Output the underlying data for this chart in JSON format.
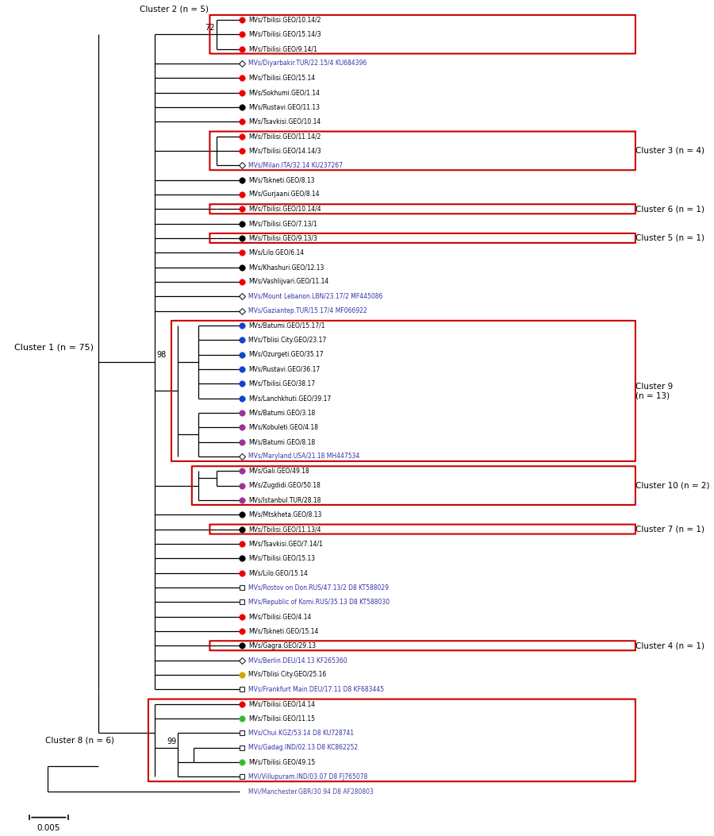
{
  "figure_width": 9.0,
  "figure_height": 10.53,
  "bg_color": "#ffffff",
  "tree_color": "#000000",
  "cluster_box_color": "#cc0000",
  "scale_bar_label": "0.005",
  "leaves": [
    {
      "label": "MVs/Tbilisi.GEO/10.14/2",
      "marker": "circle",
      "color": "#ee0000",
      "y": 1,
      "ref": false
    },
    {
      "label": "MVs/Tbilisi.GEO/15.14/3",
      "marker": "circle",
      "color": "#ee0000",
      "y": 2,
      "ref": false
    },
    {
      "label": "MVs/Tbilisi.GEO/9.14/1",
      "marker": "circle",
      "color": "#ee0000",
      "y": 3,
      "ref": false
    },
    {
      "label": "MVs/Diyarbakir.TUR/22.15/4 KU684396",
      "marker": "diamond",
      "color": "#000000",
      "y": 4,
      "ref": true
    },
    {
      "label": "MVs/Tbilisi.GEO/15.14",
      "marker": "circle",
      "color": "#ee0000",
      "y": 5,
      "ref": false
    },
    {
      "label": "MVs/Sokhumi.GEO/1.14",
      "marker": "circle",
      "color": "#ee0000",
      "y": 6,
      "ref": false
    },
    {
      "label": "MVs/Rustavi.GEO/11.13",
      "marker": "circle",
      "color": "#000000",
      "y": 7,
      "ref": false
    },
    {
      "label": "MVs/Tsavkisi.GEO/10.14",
      "marker": "circle",
      "color": "#ee0000",
      "y": 8,
      "ref": false
    },
    {
      "label": "MVs/Tbilisi.GEO/11.14/2",
      "marker": "circle",
      "color": "#ee0000",
      "y": 9,
      "ref": false
    },
    {
      "label": "MVs/Tbilisi.GEO/14.14/3",
      "marker": "circle",
      "color": "#ee0000",
      "y": 10,
      "ref": false
    },
    {
      "label": "MVs/Milan.ITA/32.14 KU237267",
      "marker": "diamond",
      "color": "#000000",
      "y": 11,
      "ref": true
    },
    {
      "label": "MVs/Tskneti.GEO/8.13",
      "marker": "circle",
      "color": "#000000",
      "y": 12,
      "ref": false
    },
    {
      "label": "MVs/Gurjaani.GEO/8.14",
      "marker": "circle",
      "color": "#ee0000",
      "y": 13,
      "ref": false
    },
    {
      "label": "MVs/Tbilisi.GEO/10.14/4",
      "marker": "circle",
      "color": "#ee0000",
      "y": 14,
      "ref": false
    },
    {
      "label": "MVs/Tbilisi.GEO/7.13/1",
      "marker": "circle",
      "color": "#000000",
      "y": 15,
      "ref": false
    },
    {
      "label": "MVs/Tbilisi.GEO/9.13/3",
      "marker": "circle",
      "color": "#000000",
      "y": 16,
      "ref": false
    },
    {
      "label": "MVs/Lilo.GEO/6.14",
      "marker": "circle",
      "color": "#ee0000",
      "y": 17,
      "ref": false
    },
    {
      "label": "MVs/Khashuri.GEO/12.13",
      "marker": "circle",
      "color": "#000000",
      "y": 18,
      "ref": false
    },
    {
      "label": "MVs/Vashlijvari.GEO/11.14",
      "marker": "circle",
      "color": "#ee0000",
      "y": 19,
      "ref": false
    },
    {
      "label": "MVs/Mount Lebanon.LBN/23.17/2 MF445086",
      "marker": "diamond",
      "color": "#000000",
      "y": 20,
      "ref": true
    },
    {
      "label": "MVs/Gaziantep.TUR/15.17/4 MF066922",
      "marker": "diamond",
      "color": "#000000",
      "y": 21,
      "ref": true
    },
    {
      "label": "MVs/Batumi.GEO/15.17/1",
      "marker": "circle",
      "color": "#1144cc",
      "y": 22,
      "ref": false
    },
    {
      "label": "MVs/Tblisi City.GEO/23.17",
      "marker": "circle",
      "color": "#1144cc",
      "y": 23,
      "ref": false
    },
    {
      "label": "MVs/Ozurgeti.GEO/35.17",
      "marker": "circle",
      "color": "#1144cc",
      "y": 24,
      "ref": false
    },
    {
      "label": "MVs/Rustavi.GEO/36.17",
      "marker": "circle",
      "color": "#1144cc",
      "y": 25,
      "ref": false
    },
    {
      "label": "MVs/Tbilisi.GEO/38.17",
      "marker": "circle",
      "color": "#1144cc",
      "y": 26,
      "ref": false
    },
    {
      "label": "MVs/Lanchkhuti.GEO/39.17",
      "marker": "circle",
      "color": "#1144cc",
      "y": 27,
      "ref": false
    },
    {
      "label": "MVs/Batumi.GEO/3.18",
      "marker": "circle",
      "color": "#993399",
      "y": 28,
      "ref": false
    },
    {
      "label": "MVs/Kobuleti.GEO/4.18",
      "marker": "circle",
      "color": "#993399",
      "y": 29,
      "ref": false
    },
    {
      "label": "MVs/Batumi.GEO/8.18",
      "marker": "circle",
      "color": "#993399",
      "y": 30,
      "ref": false
    },
    {
      "label": "MVs/Maryland.USA/21.18 MH447534",
      "marker": "diamond",
      "color": "#000000",
      "y": 31,
      "ref": true
    },
    {
      "label": "MVs/Gali.GEO/49.18",
      "marker": "circle",
      "color": "#993399",
      "y": 32,
      "ref": false
    },
    {
      "label": "MVs/Zugdidi.GEO/50.18",
      "marker": "circle",
      "color": "#993399",
      "y": 33,
      "ref": false
    },
    {
      "label": "MVs/Istanbul.TUR/28.18",
      "marker": "circle",
      "color": "#993399",
      "y": 34,
      "ref": false
    },
    {
      "label": "MVs/Mtskheta.GEO/8.13",
      "marker": "circle",
      "color": "#000000",
      "y": 35,
      "ref": false
    },
    {
      "label": "MVs/Tbilisi.GEO/11.13/4",
      "marker": "circle",
      "color": "#000000",
      "y": 36,
      "ref": false
    },
    {
      "label": "MVs/Tsavkisi.GEO/7.14/1",
      "marker": "circle",
      "color": "#ee0000",
      "y": 37,
      "ref": false
    },
    {
      "label": "MVs/Tbilisi.GEO/15.13",
      "marker": "circle",
      "color": "#000000",
      "y": 38,
      "ref": false
    },
    {
      "label": "MVs/Lilo.GEO/15.14",
      "marker": "circle",
      "color": "#ee0000",
      "y": 39,
      "ref": false
    },
    {
      "label": "MVs/Rostov on Don.RUS/47.13/2 D8 KT588029",
      "marker": "square",
      "color": "#000000",
      "y": 40,
      "ref": true
    },
    {
      "label": "MVs/Republic of Komi.RUS/35.13 D8 KT588030",
      "marker": "square",
      "color": "#000000",
      "y": 41,
      "ref": true
    },
    {
      "label": "MVs/Tbilisi.GEO/4.14",
      "marker": "circle",
      "color": "#ee0000",
      "y": 42,
      "ref": false
    },
    {
      "label": "MVs/Tskneti.GEO/15.14",
      "marker": "circle",
      "color": "#ee0000",
      "y": 43,
      "ref": false
    },
    {
      "label": "MVs/Gagra.GEO/29.13",
      "marker": "circle",
      "color": "#000000",
      "y": 44,
      "ref": false
    },
    {
      "label": "MVs/Berlin.DEU/14.13 KF265360",
      "marker": "diamond",
      "color": "#000000",
      "y": 45,
      "ref": true
    },
    {
      "label": "MVs/Tblisi City.GEO/25.16",
      "marker": "circle",
      "color": "#ccaa00",
      "y": 46,
      "ref": false
    },
    {
      "label": "MVs/Frankfurt Main.DEU/17.11 D8 KF683445",
      "marker": "square",
      "color": "#000000",
      "y": 47,
      "ref": true
    },
    {
      "label": "MVs/Tbilisi.GEO/14.14",
      "marker": "circle",
      "color": "#ee0000",
      "y": 48,
      "ref": false
    },
    {
      "label": "MVs/Tbilisi.GEO/11.15",
      "marker": "circle",
      "color": "#33bb33",
      "y": 49,
      "ref": false
    },
    {
      "label": "MVs/Chui.KGZ/53.14 D8 KU728741",
      "marker": "square",
      "color": "#000000",
      "y": 50,
      "ref": true
    },
    {
      "label": "MVs/Gadag.IND/02.13 D8 KC862252",
      "marker": "square",
      "color": "#000000",
      "y": 51,
      "ref": true
    },
    {
      "label": "MVs/Tbilisi.GEO/49.15",
      "marker": "circle",
      "color": "#33bb33",
      "y": 52,
      "ref": false
    },
    {
      "label": "MVi/Villupuram.IND/03.07 D8 FJ765078",
      "marker": "square",
      "color": "#000000",
      "y": 53,
      "ref": true
    },
    {
      "label": "MVi/Manchester.GBR/30.94 D8 AF280803",
      "marker": "none",
      "color": "#4444aa",
      "y": 54,
      "ref": true
    }
  ]
}
